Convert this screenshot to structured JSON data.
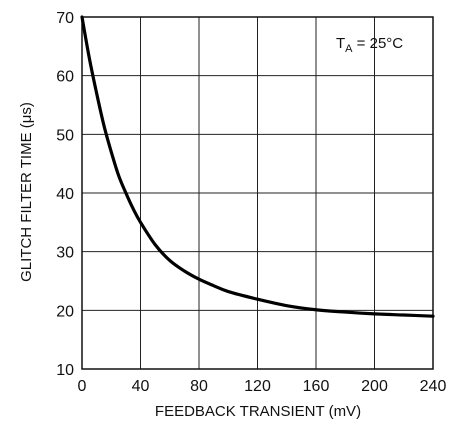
{
  "chart_data": {
    "type": "line",
    "xlabel": "FEEDBACK TRANSIENT (mV)",
    "ylabel": "GLITCH FILTER TIME (μs)",
    "xlim": [
      0,
      240
    ],
    "ylim": [
      10,
      70
    ],
    "xticks": [
      0,
      40,
      80,
      120,
      160,
      200,
      240
    ],
    "yticks": [
      10,
      20,
      30,
      40,
      50,
      60,
      70
    ],
    "grid": true,
    "annotation": {
      "T": "T",
      "sub": "A",
      "rest": " = 25°C"
    },
    "series": [
      {
        "x": [
          0,
          5,
          10,
          15,
          20,
          25,
          30,
          35,
          40,
          50,
          60,
          70,
          80,
          90,
          100,
          120,
          140,
          160,
          180,
          200,
          220,
          240
        ],
        "y": [
          70,
          63,
          57,
          51.5,
          47,
          43,
          40,
          37.3,
          35,
          31.2,
          28.5,
          26.7,
          25.3,
          24.2,
          23.2,
          21.9,
          20.8,
          20.1,
          19.7,
          19.4,
          19.2,
          19
        ]
      }
    ]
  }
}
